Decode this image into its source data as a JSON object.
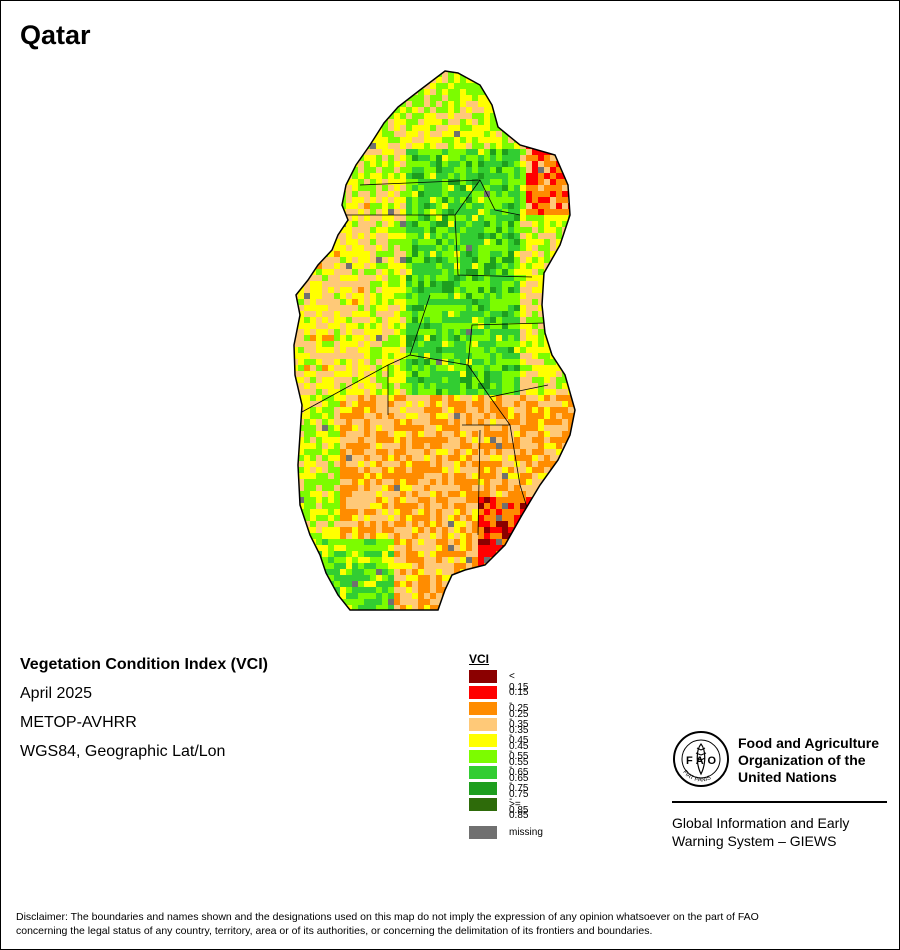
{
  "map": {
    "title": "Qatar"
  },
  "info": {
    "index_name": "Vegetation Condition Index (VCI)",
    "period": "April 2025",
    "sensor": "METOP-AVHRR",
    "projection": "WGS84, Geographic Lat/Lon"
  },
  "legend": {
    "title": "VCI",
    "classes": [
      {
        "label": "< 0.15",
        "color": "#8b0000"
      },
      {
        "label": "0.15 - 0.25",
        "color": "#ff0000"
      },
      {
        "label": "0.25 - 0.35",
        "color": "#ff8c00"
      },
      {
        "label": "0.35 - 0.45",
        "color": "#ffc978"
      },
      {
        "label": "0.45 - 0.55",
        "color": "#ffff00"
      },
      {
        "label": "0.55 - 0.65",
        "color": "#7cfc00"
      },
      {
        "label": "0.65 - 0.75",
        "color": "#32cd32"
      },
      {
        "label": "0.75 - 0.85",
        "color": "#1e9e1e"
      },
      {
        "label": ">= 0.85",
        "color": "#2e6b0a"
      }
    ],
    "missing": {
      "label": "missing",
      "color": "#707070"
    }
  },
  "logo": {
    "org_line1": "Food and Agriculture",
    "org_line2": "Organization of the",
    "org_line3": "United Nations",
    "letters": "FAO",
    "motto": "FIAT PANIS",
    "giews_line1": "Global Information and Early",
    "giews_line2": "Warning System – GIEWS"
  },
  "disclaimer": {
    "line1": "Disclaimer: The boundaries and names shown and the designations used on this map do not imply the expression of any opinion whatsoever on the part of FAO",
    "line2": "concerning the legal status of any country, territory, area or of its authorities, or concerning the delimitation of its frontiers and boundaries."
  }
}
